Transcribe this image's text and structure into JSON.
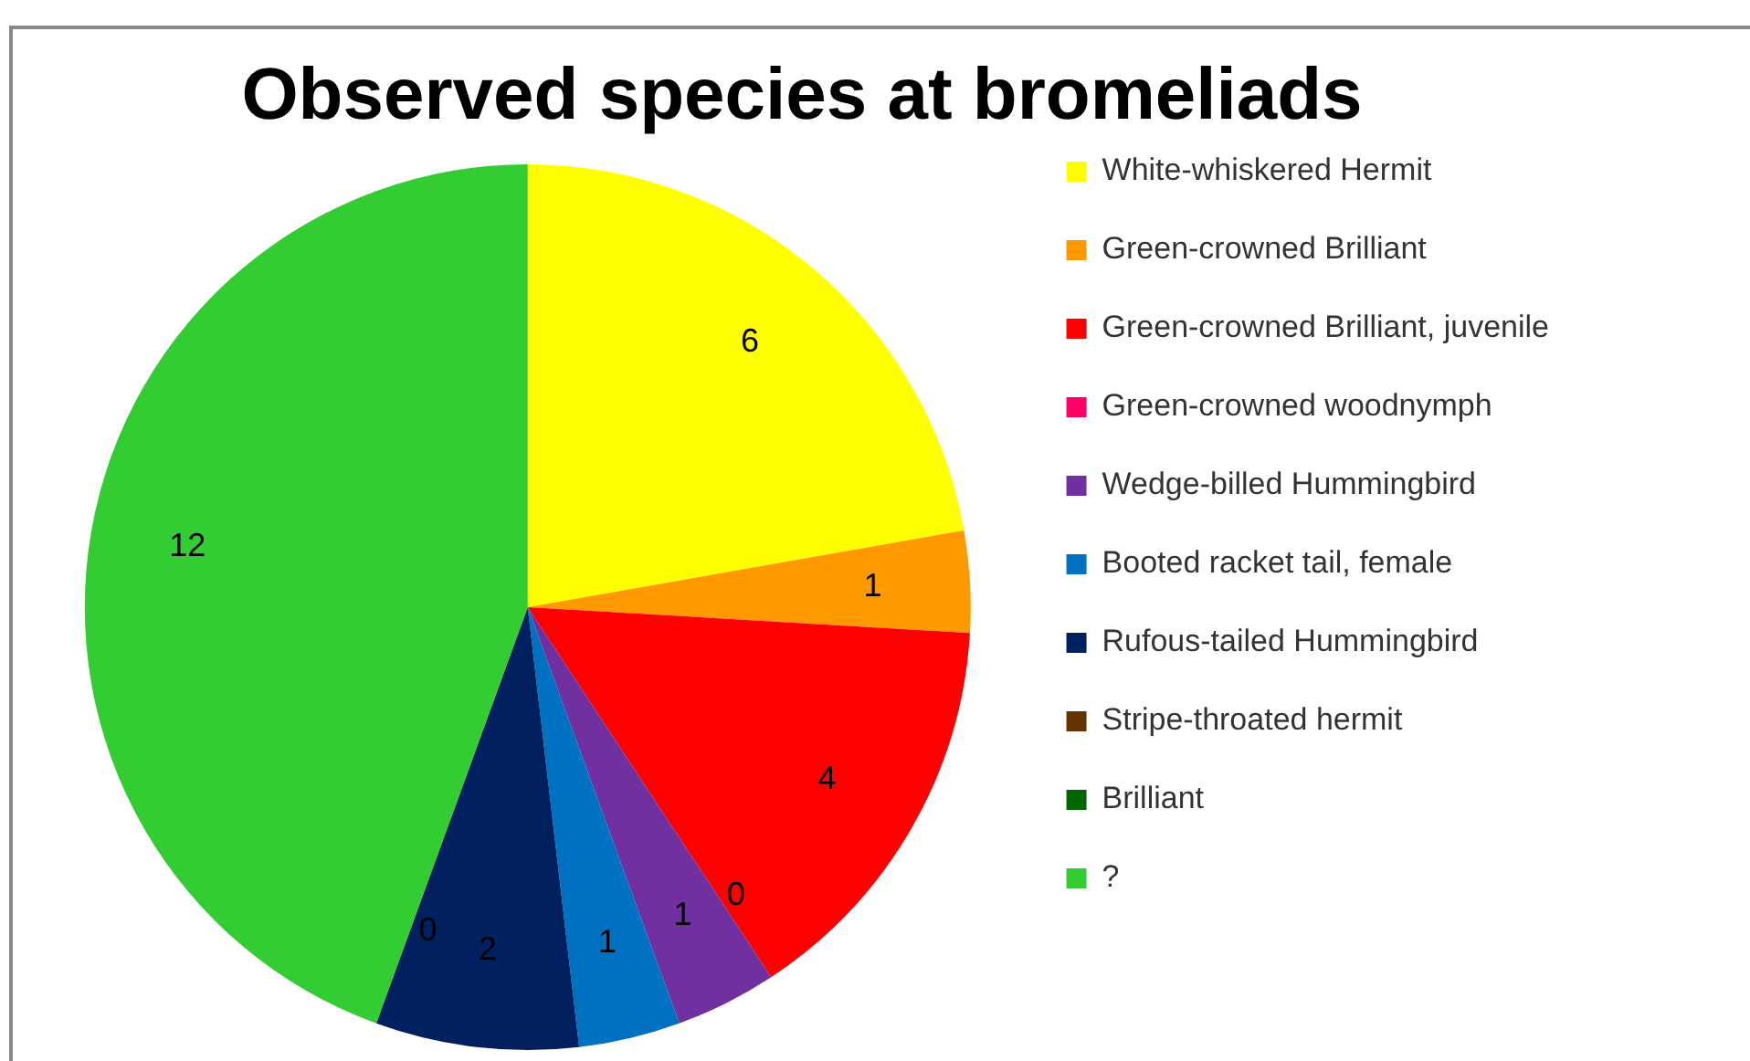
{
  "chart_data": {
    "type": "pie",
    "title": "Observed species at bromeliads",
    "categories": [
      "White-whiskered Hermit",
      "Green-crowned Brilliant",
      "Green-crowned Brilliant, juvenile",
      "Green-crowned woodnymph",
      "Wedge-billed Hummingbird",
      "Booted racket tail, female",
      "Rufous-tailed Hummingbird",
      "Stripe-throated hermit",
      "Brilliant",
      "?"
    ],
    "values": [
      6,
      1,
      4,
      0,
      1,
      1,
      2,
      0,
      0,
      12
    ],
    "colors": [
      "#ffff00",
      "#ff9900",
      "#ff0000",
      "#ff0066",
      "#7030a0",
      "#0070c0",
      "#002060",
      "#663300",
      "#006600",
      "#33cc33"
    ],
    "value_labels": [
      "6",
      "1",
      "4",
      "0",
      "1",
      "1",
      "2",
      "0",
      null,
      "12"
    ],
    "legend": "right"
  }
}
